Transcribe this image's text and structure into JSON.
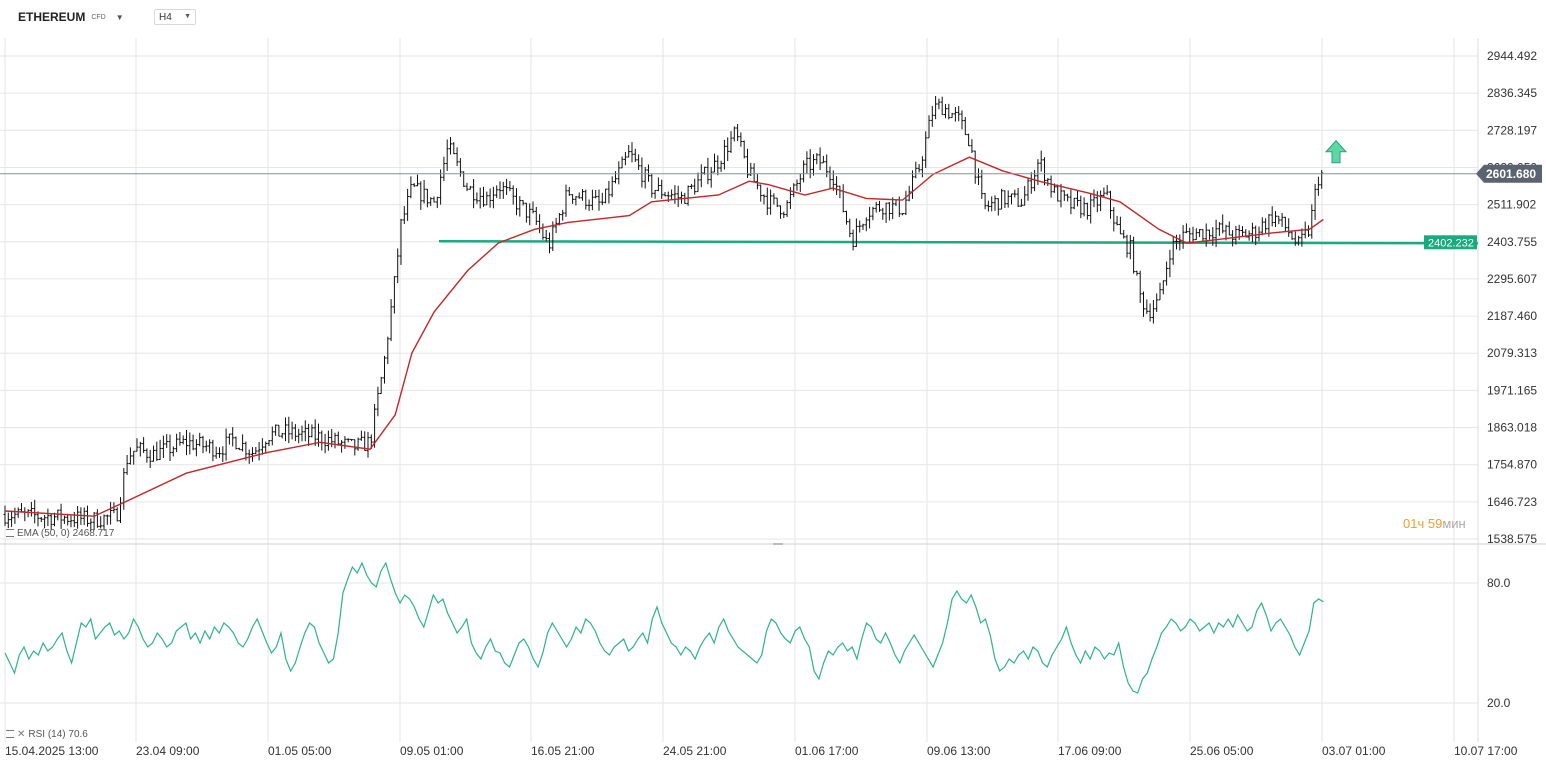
{
  "symbol": {
    "name": "ETHEREUM",
    "type": "CFD"
  },
  "timeframe": "H4",
  "indicators": {
    "ema_label": "EMA (50, 0) 2468.717",
    "rsi_label": "RSI (14) 70.6"
  },
  "current_price": "2601.680",
  "support_level_label": "2402.232",
  "countdown": {
    "hours": "01",
    "hours_unit": "ч",
    "minutes": "59",
    "minutes_unit": "мин"
  },
  "colors": {
    "ema": "#c0282a",
    "support": "#1aaa7e",
    "rsi": "#2db38c",
    "arrow": "#5fd6a6",
    "price_label_bg": "#5c6370",
    "grid": "#e6e6e6"
  },
  "chart_data": [
    {
      "type": "candlestick",
      "title": "ETHEREUM",
      "timeframe": "H4",
      "x_tick_labels": [
        "15.04.2025  13:00",
        "23.04  09:00",
        "01.05  05:00",
        "09.05  01:00",
        "16.05  21:00",
        "24.05  21:00",
        "01.06  17:00",
        "09.06  13:00",
        "17.06  09:00",
        "25.06  05:00",
        "03.07  01:00",
        "10.07  17:00"
      ],
      "y_tick_labels": [
        "2944.492",
        "2836.345",
        "2728.197",
        "2620.050",
        "2511.902",
        "2403.755",
        "2295.607",
        "2187.460",
        "2079.313",
        "1971.165",
        "1863.018",
        "1754.870",
        "1646.723",
        "1538.575"
      ],
      "ylim": [
        1538.575,
        2944.492
      ],
      "close_path": [
        {
          "x": "15.04.2025 13:00",
          "y": 1610
        },
        {
          "x": "19.04 13:00",
          "y": 1600
        },
        {
          "x": "20.04 21:00",
          "y": 1595
        },
        {
          "x": "22.04 05:00",
          "y": 1605
        },
        {
          "x": "22.04 21:00",
          "y": 1780
        },
        {
          "x": "23.04 09:00",
          "y": 1800
        },
        {
          "x": "24.04 09:00",
          "y": 1785
        },
        {
          "x": "26.04 09:00",
          "y": 1820
        },
        {
          "x": "28.04 09:00",
          "y": 1800
        },
        {
          "x": "29.04 05:00",
          "y": 1830
        },
        {
          "x": "30.04 09:00",
          "y": 1790
        },
        {
          "x": "01.05 05:00",
          "y": 1840
        },
        {
          "x": "02.05 05:00",
          "y": 1850
        },
        {
          "x": "04.05 09:00",
          "y": 1835
        },
        {
          "x": "06.05 09:00",
          "y": 1805
        },
        {
          "x": "07.05 09:00",
          "y": 1820
        },
        {
          "x": "08.05 05:00",
          "y": 2050
        },
        {
          "x": "08.05 21:00",
          "y": 2300
        },
        {
          "x": "09.05 05:00",
          "y": 2450
        },
        {
          "x": "09.05 21:00",
          "y": 2560
        },
        {
          "x": "11.05 05:00",
          "y": 2520
        },
        {
          "x": "12.05 01:00",
          "y": 2680
        },
        {
          "x": "13.05 05:00",
          "y": 2560
        },
        {
          "x": "14.05 09:00",
          "y": 2530
        },
        {
          "x": "15.05 01:00",
          "y": 2570
        },
        {
          "x": "16.05 01:00",
          "y": 2520
        },
        {
          "x": "17.05 05:00",
          "y": 2470
        },
        {
          "x": "18.05 01:00",
          "y": 2390
        },
        {
          "x": "19.05 05:00",
          "y": 2550
        },
        {
          "x": "21.05 05:00",
          "y": 2510
        },
        {
          "x": "22.05 21:00",
          "y": 2660
        },
        {
          "x": "24.05 05:00",
          "y": 2560
        },
        {
          "x": "26.05 01:00",
          "y": 2530
        },
        {
          "x": "28.05 05:00",
          "y": 2640
        },
        {
          "x": "29.05 05:00",
          "y": 2720
        },
        {
          "x": "30.05 01:00",
          "y": 2600
        },
        {
          "x": "31.05 05:00",
          "y": 2520
        },
        {
          "x": "01.06 05:00",
          "y": 2500
        },
        {
          "x": "02.06 09:00",
          "y": 2620
        },
        {
          "x": "03.06 05:00",
          "y": 2640
        },
        {
          "x": "04.06 01:00",
          "y": 2600
        },
        {
          "x": "05.06 05:00",
          "y": 2410
        },
        {
          "x": "06.06 01:00",
          "y": 2490
        },
        {
          "x": "07.06 01:00",
          "y": 2510
        },
        {
          "x": "08.06 05:00",
          "y": 2500
        },
        {
          "x": "09.06 05:00",
          "y": 2620
        },
        {
          "x": "10.06 01:00",
          "y": 2790
        },
        {
          "x": "10.06 13:00",
          "y": 2800
        },
        {
          "x": "11.06 13:00",
          "y": 2760
        },
        {
          "x": "12.06 05:00",
          "y": 2700
        },
        {
          "x": "13.06 01:00",
          "y": 2500
        },
        {
          "x": "14.06 05:00",
          "y": 2530
        },
        {
          "x": "15.06 09:00",
          "y": 2520
        },
        {
          "x": "16.06 09:00",
          "y": 2640
        },
        {
          "x": "17.06 05:00",
          "y": 2550
        },
        {
          "x": "18.06 05:00",
          "y": 2510
        },
        {
          "x": "19.06 09:00",
          "y": 2500
        },
        {
          "x": "20.06 09:00",
          "y": 2540
        },
        {
          "x": "21.06 05:00",
          "y": 2420
        },
        {
          "x": "21.06 21:00",
          "y": 2380
        },
        {
          "x": "22.06 09:00",
          "y": 2250
        },
        {
          "x": "22.06 21:00",
          "y": 2200
        },
        {
          "x": "23.06 13:00",
          "y": 2230
        },
        {
          "x": "24.06 05:00",
          "y": 2380
        },
        {
          "x": "24.06 21:00",
          "y": 2420
        },
        {
          "x": "25.06 21:00",
          "y": 2430
        },
        {
          "x": "27.06 01:00",
          "y": 2440
        },
        {
          "x": "28.06 05:00",
          "y": 2420
        },
        {
          "x": "29.06 05:00",
          "y": 2430
        },
        {
          "x": "30.06 09:00",
          "y": 2480
        },
        {
          "x": "01.07 05:00",
          "y": 2440
        },
        {
          "x": "01.07 21:00",
          "y": 2390
        },
        {
          "x": "02.07 13:00",
          "y": 2440
        },
        {
          "x": "03.07 01:00",
          "y": 2590
        },
        {
          "x": "03.07 09:00",
          "y": 2601.68
        }
      ],
      "high": 2880,
      "low": 1550,
      "series": [
        {
          "name": "EMA (50, 0)",
          "last": 2468.717,
          "path": [
            {
              "x": "15.04.2025 13:00",
              "y": 1620
            },
            {
              "x": "20.04 21:00",
              "y": 1605
            },
            {
              "x": "22.04 21:00",
              "y": 1650
            },
            {
              "x": "26.04 09:00",
              "y": 1730
            },
            {
              "x": "01.05 05:00",
              "y": 1790
            },
            {
              "x": "04.05 09:00",
              "y": 1820
            },
            {
              "x": "07.05 09:00",
              "y": 1800
            },
            {
              "x": "08.05 21:00",
              "y": 1900
            },
            {
              "x": "09.05 21:00",
              "y": 2080
            },
            {
              "x": "11.05 05:00",
              "y": 2200
            },
            {
              "x": "13.05 05:00",
              "y": 2320
            },
            {
              "x": "15.05 01:00",
              "y": 2400
            },
            {
              "x": "17.05 05:00",
              "y": 2440
            },
            {
              "x": "19.05 05:00",
              "y": 2460
            },
            {
              "x": "22.05 21:00",
              "y": 2480
            },
            {
              "x": "24.05 05:00",
              "y": 2520
            },
            {
              "x": "28.05 05:00",
              "y": 2540
            },
            {
              "x": "30.05 01:00",
              "y": 2580
            },
            {
              "x": "31.05 05:00",
              "y": 2570
            },
            {
              "x": "02.06 09:00",
              "y": 2540
            },
            {
              "x": "04.06 01:00",
              "y": 2560
            },
            {
              "x": "06.06 01:00",
              "y": 2530
            },
            {
              "x": "08.06 05:00",
              "y": 2525
            },
            {
              "x": "10.06 01:00",
              "y": 2600
            },
            {
              "x": "12.06 05:00",
              "y": 2650
            },
            {
              "x": "14.06 05:00",
              "y": 2610
            },
            {
              "x": "16.06 09:00",
              "y": 2580
            },
            {
              "x": "19.06 09:00",
              "y": 2545
            },
            {
              "x": "21.06 05:00",
              "y": 2520
            },
            {
              "x": "23.06 13:00",
              "y": 2440
            },
            {
              "x": "25.06 05:00",
              "y": 2400
            },
            {
              "x": "27.06 01:00",
              "y": 2410
            },
            {
              "x": "30.06 09:00",
              "y": 2430
            },
            {
              "x": "02.07 13:00",
              "y": 2440
            },
            {
              "x": "03.07 09:00",
              "y": 2468.717
            }
          ]
        },
        {
          "name": "Support line",
          "value": 2402.232
        }
      ]
    },
    {
      "type": "line",
      "title": "RSI (14)",
      "y_tick_labels": [
        "80.0",
        "20.0"
      ],
      "ylim": [
        0,
        100
      ],
      "last": 70.6,
      "series": [
        {
          "name": "RSI (14)",
          "values": [
            45,
            40,
            35,
            44,
            48,
            42,
            46,
            44,
            50,
            46,
            48,
            52,
            55,
            46,
            40,
            50,
            60,
            58,
            62,
            52,
            55,
            58,
            60,
            54,
            56,
            52,
            55,
            62,
            58,
            52,
            48,
            50,
            55,
            52,
            48,
            50,
            56,
            58,
            60,
            52,
            55,
            50,
            56,
            52,
            58,
            55,
            60,
            58,
            55,
            50,
            48,
            52,
            58,
            62,
            56,
            50,
            45,
            48,
            55,
            42,
            36,
            40,
            48,
            55,
            60,
            58,
            50,
            45,
            40,
            42,
            55,
            75,
            82,
            88,
            85,
            90,
            84,
            80,
            78,
            86,
            90,
            82,
            75,
            70,
            74,
            72,
            68,
            62,
            58,
            66,
            74,
            70,
            72,
            65,
            60,
            55,
            58,
            62,
            50,
            45,
            42,
            48,
            52,
            46,
            45,
            40,
            38,
            44,
            50,
            52,
            48,
            42,
            38,
            45,
            55,
            60,
            56,
            52,
            48,
            52,
            58,
            55,
            62,
            60,
            56,
            50,
            46,
            44,
            48,
            50,
            52,
            46,
            48,
            52,
            55,
            50,
            62,
            68,
            60,
            55,
            50,
            48,
            44,
            48,
            46,
            42,
            48,
            52,
            55,
            50,
            58,
            62,
            56,
            52,
            48,
            46,
            44,
            42,
            40,
            44,
            56,
            62,
            60,
            55,
            52,
            50,
            56,
            58,
            52,
            48,
            36,
            32,
            40,
            46,
            44,
            48,
            50,
            46,
            48,
            42,
            52,
            60,
            58,
            52,
            50,
            55,
            50,
            44,
            40,
            46,
            50,
            54,
            50,
            46,
            42,
            38,
            44,
            50,
            60,
            72,
            76,
            72,
            70,
            74,
            68,
            60,
            62,
            54,
            42,
            36,
            38,
            42,
            40,
            44,
            46,
            42,
            48,
            46,
            40,
            38,
            44,
            48,
            52,
            58,
            50,
            44,
            40,
            46,
            42,
            48,
            46,
            42,
            45,
            44,
            50,
            38,
            30,
            26,
            25,
            32,
            35,
            42,
            48,
            55,
            58,
            62,
            60,
            56,
            58,
            62,
            60,
            56,
            58,
            60,
            55,
            60,
            58,
            62,
            58,
            64,
            60,
            56,
            58,
            66,
            70,
            64,
            56,
            60,
            62,
            58,
            54,
            48,
            44,
            50,
            56,
            70,
            72,
            70.6
          ]
        }
      ]
    }
  ]
}
